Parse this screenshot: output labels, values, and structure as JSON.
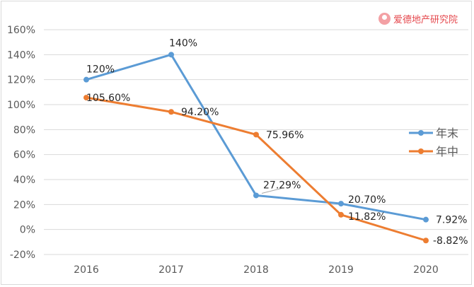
{
  "watermark": {
    "text": "爱德地产研究院"
  },
  "chart_data": {
    "type": "line",
    "categories": [
      "2016",
      "2017",
      "2018",
      "2019",
      "2020"
    ],
    "ylim": [
      -20,
      160
    ],
    "y_ticks": [
      "160%",
      "140%",
      "120%",
      "100%",
      "80%",
      "60%",
      "40%",
      "20%",
      "0%",
      "-20%"
    ],
    "y_tick_values": [
      160,
      140,
      120,
      100,
      80,
      60,
      40,
      20,
      0,
      -20
    ],
    "grid": true,
    "legend_position": "right",
    "series": [
      {
        "name": "年末",
        "color": "#5b9bd5",
        "values": [
          120,
          140,
          27.29,
          20.7,
          7.92
        ],
        "labels": [
          "120%",
          "140%",
          "27.29%",
          "20.70%",
          "7.92%"
        ]
      },
      {
        "name": "年中",
        "color": "#ed7d31",
        "values": [
          105.6,
          94.2,
          75.96,
          11.82,
          -8.82
        ],
        "labels": [
          "105.60%",
          "94.20%",
          "75.96%",
          "11.82%",
          "-8.82%"
        ]
      }
    ]
  }
}
